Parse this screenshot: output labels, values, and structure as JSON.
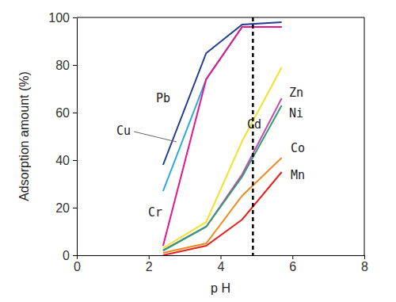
{
  "chart_data": {
    "type": "line",
    "x_label": "p H",
    "y_label": "Adsorption amount (%)",
    "x": [
      2.4,
      3.6,
      4.6,
      5.7
    ],
    "series": [
      {
        "name": "Pb",
        "color": "#1f3a8f",
        "values": [
          38,
          85,
          97,
          98
        ]
      },
      {
        "name": "Cu",
        "color": "#29a8e0",
        "values": [
          27,
          74,
          96,
          96
        ]
      },
      {
        "name": "Cr",
        "color": "#e5168c",
        "values": [
          4,
          74,
          96,
          96
        ]
      },
      {
        "name": "Cd",
        "color": "#f5e02a",
        "values": [
          3,
          14,
          48,
          79
        ]
      },
      {
        "name": "Zn",
        "color": "#c548b8",
        "values": [
          2,
          12,
          34,
          66
        ]
      },
      {
        "name": "Ni",
        "color": "#2e9e6e",
        "values": [
          2,
          12,
          33,
          63
        ]
      },
      {
        "name": "Co",
        "color": "#f08a24",
        "values": [
          1,
          5,
          25,
          41
        ]
      },
      {
        "name": "Mn",
        "color": "#e5221b",
        "values": [
          0,
          4,
          15,
          35
        ]
      }
    ],
    "reference_x": 4.9,
    "xlim": [
      0,
      8
    ],
    "xticks": [
      0,
      2,
      4,
      6,
      8
    ],
    "ylim": [
      0,
      100
    ],
    "yticks": [
      0,
      20,
      40,
      60,
      80,
      100
    ],
    "grid": false
  }
}
